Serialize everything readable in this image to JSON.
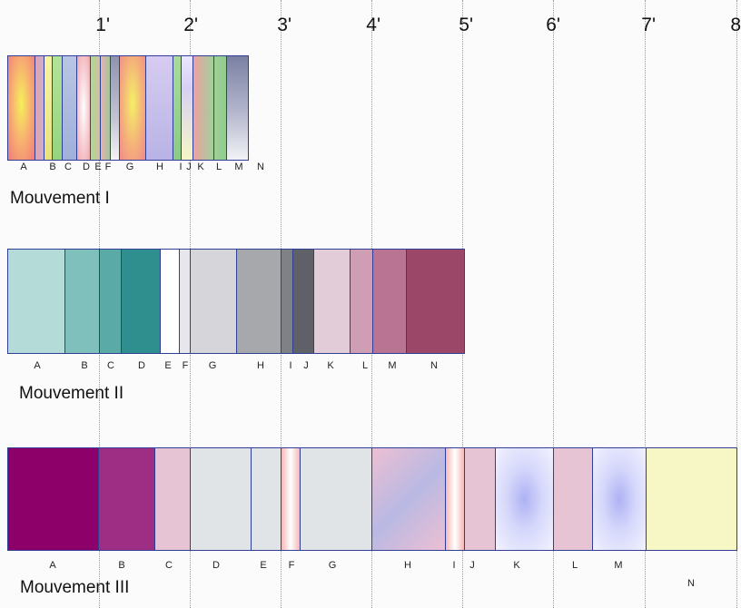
{
  "time_axis": {
    "ticks": [
      "1'",
      "2'",
      "3'",
      "4'",
      "5'",
      "6'",
      "7'",
      "8"
    ]
  },
  "movements": [
    {
      "title": "Mouvement I",
      "sections": [
        {
          "label": "A",
          "fill": "radial-gradient(ellipse at 50% 45%, #f6f05a 0%, #f7b070 50%, #f07a7a 100%)"
        },
        {
          "label": "",
          "fill": "linear-gradient(90deg,#e8a0a0,#c8b0d8)"
        },
        {
          "label": "B",
          "fill": "linear-gradient(#f6f3a8,#e9e27a)"
        },
        {
          "label": "C",
          "fill": "linear-gradient(#b2e39a,#95d47e)"
        },
        {
          "label": "",
          "fill": "linear-gradient(#b9c5e3,#9fb0da)"
        },
        {
          "label": "D",
          "fill": "radial-gradient(ellipse at 50% 50%, #ffffff 0%, #f6c8d0 60%, #eea8a8 100%)"
        },
        {
          "label": "E",
          "fill": "linear-gradient(90deg,#b3d69c,#cfc09a)"
        },
        {
          "label": "F",
          "fill": "linear-gradient(90deg,#e8b1b1,#9fc79a)"
        },
        {
          "label": "G",
          "fill": "linear-gradient(#8f93ae,#c2c4d3 60%,#f4f4f6)"
        },
        {
          "label": "H",
          "fill": "radial-gradient(ellipse at 50% 45%, #f3f066 0%, #f5b17a 55%, #ef8a8a 100%)"
        },
        {
          "label": "I",
          "fill": "linear-gradient(#d6ccf0,#b9b3e6)"
        },
        {
          "label": "J",
          "fill": "linear-gradient(#a8dc98,#8acb86)"
        },
        {
          "label": "K",
          "fill": "linear-gradient(#ebe7ff,#d6d0f4 30%,#f6f6c6)"
        },
        {
          "label": "L",
          "fill": "linear-gradient(90deg,#f0a0a0,#9fd19c)"
        },
        {
          "label": "M",
          "fill": "linear-gradient(90deg,#9fd094,#90cb8e)"
        },
        {
          "label": "N",
          "fill": "linear-gradient(#7b81a4,#b5b8ce 55%,#f1f2f6)"
        }
      ]
    },
    {
      "title": "Mouvement II",
      "sections": [
        {
          "label": "A",
          "fill": "#b5dbd9"
        },
        {
          "label": "B",
          "fill": "#7fbfbc"
        },
        {
          "label": "C",
          "fill": "#5aaaa7"
        },
        {
          "label": "D",
          "fill": "#2e8f8e"
        },
        {
          "label": "E",
          "fill": "#ffffff"
        },
        {
          "label": "F",
          "fill": "#e7e6ec"
        },
        {
          "label": "G",
          "fill": "#d6d6da"
        },
        {
          "label": "H",
          "fill": "#a7a8ab"
        },
        {
          "label": "I",
          "fill": "#808186"
        },
        {
          "label": "J",
          "fill": "#5f6068"
        },
        {
          "label": "K",
          "fill": "#e2ccd7"
        },
        {
          "label": "L",
          "fill": "#cf9eb4"
        },
        {
          "label": "M",
          "fill": "#b97393"
        },
        {
          "label": "N",
          "fill": "#9b4768"
        }
      ]
    },
    {
      "title": "Mouvement III",
      "sections": [
        {
          "label": "A",
          "fill": "#8e0069"
        },
        {
          "label": "B",
          "fill": "#9e2d84"
        },
        {
          "label": "C",
          "fill": "#e6c4d4"
        },
        {
          "label": "D",
          "fill": "#e1e4e6"
        },
        {
          "label": "E",
          "fill": "#e1e4e6"
        },
        {
          "label": "F",
          "fill": "linear-gradient(90deg,#f5b7b7,#ffffff 50%,#f5b7b7)"
        },
        {
          "label": "G",
          "fill": "#e1e4e6"
        },
        {
          "label": "H",
          "fill": "linear-gradient(135deg,#ecbfd3,#b9b9e3 50%,#ecbfd3)"
        },
        {
          "label": "I",
          "fill": "linear-gradient(90deg,#f5b7b7,#ffffff 50%,#f5b7b7)"
        },
        {
          "label": "J",
          "fill": "#e6c4d4"
        },
        {
          "label": "K",
          "fill": "radial-gradient(ellipse at 50% 50%, #aeb2f3 0%, #d6d8fb 45%, #f2f2fe 100%)"
        },
        {
          "label": "L",
          "fill": "#e6c4d4"
        },
        {
          "label": "M",
          "fill": "radial-gradient(ellipse at 50% 50%, #aeb2f3 0%, #d6d8fb 45%, #f2f2fe 100%)"
        },
        {
          "label": "N",
          "fill": "#f7f7c6"
        }
      ]
    }
  ]
}
